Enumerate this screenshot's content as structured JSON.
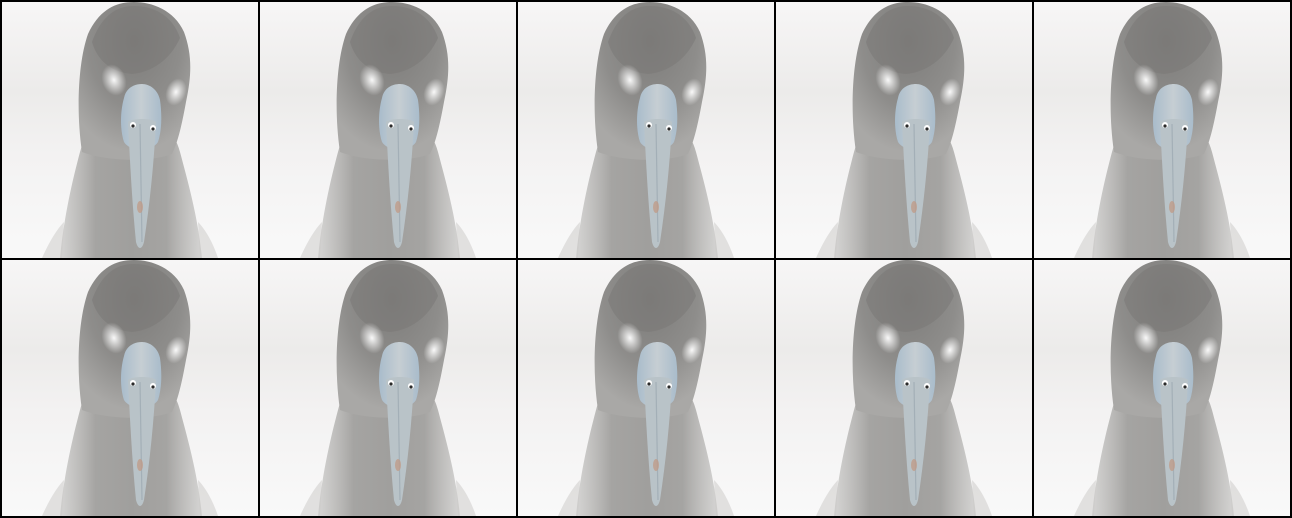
{
  "grid": {
    "rows": 2,
    "columns": 5,
    "tile_count": 10,
    "subject": "bird-head-front-view"
  },
  "colors": {
    "border": "#000000",
    "background": "#f4f3f3",
    "head": "#8b8a88",
    "neck": "#a3a2a0",
    "beak": "#b8c2c8",
    "beak_shade": "#9aaebd",
    "beak_tip": "#c09a86",
    "cheek_highlight": "#f2f2f0",
    "eye": "#2a2a2a"
  }
}
